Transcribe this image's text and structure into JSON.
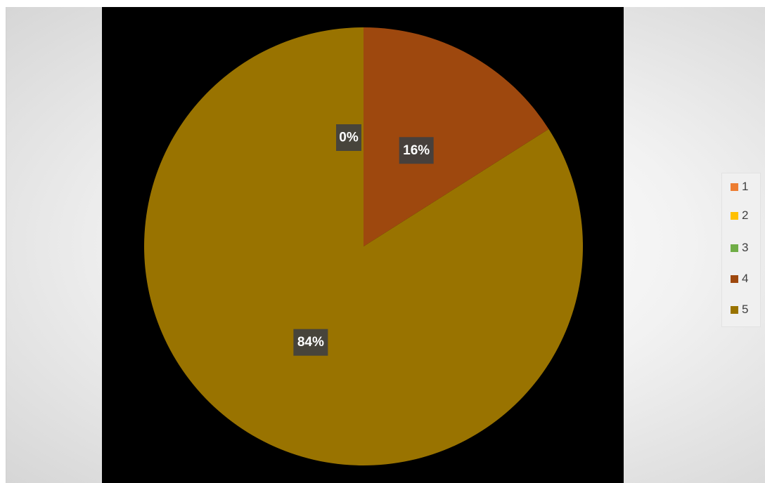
{
  "chart_data": {
    "type": "pie",
    "title": "",
    "categories": [
      "1",
      "2",
      "3",
      "4",
      "5"
    ],
    "values": [
      0,
      0,
      0,
      16,
      84
    ],
    "data_labels": [
      "0%",
      "",
      "",
      "16%",
      "84%"
    ],
    "colors": [
      "#ED7D31",
      "#FFC000",
      "#70AD47",
      "#9E480E",
      "#997300"
    ],
    "start_angle_deg": 0,
    "direction": "clockwise",
    "legend": {
      "position": "right",
      "entries": [
        "1",
        "2",
        "3",
        "4",
        "5"
      ]
    }
  },
  "background": {
    "plot_color": "#000000",
    "chart_color": "#e8e8e8"
  }
}
